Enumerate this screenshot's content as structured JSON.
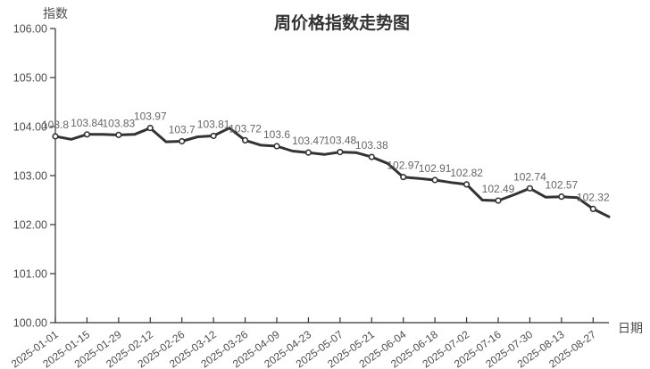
{
  "chart_data": {
    "type": "line",
    "title": "周价格指数走势图",
    "xlabel": "日期",
    "ylabel": "指数",
    "ylim": [
      100,
      106
    ],
    "y_tick_labels": [
      "106.00",
      "105.00",
      "104.00",
      "103.00",
      "102.00",
      "101.00",
      "100.00"
    ],
    "grid": "off",
    "legend": "none",
    "categories": [
      "2025-01-01",
      "2025-01-15",
      "2025-01-29",
      "2025-02-12",
      "2025-02-26",
      "2025-03-12",
      "2025-03-26",
      "2025-04-09",
      "2025-04-23",
      "2025-05-07",
      "2025-05-21",
      "2025-06-04",
      "2025-06-18",
      "2025-07-02",
      "2025-07-16",
      "2025-07-30",
      "2025-08-13",
      "2025-08-27"
    ],
    "values": [
      103.8,
      103.84,
      103.83,
      103.97,
      103.7,
      103.81,
      103.72,
      103.6,
      103.47,
      103.48,
      103.38,
      102.97,
      102.91,
      102.82,
      102.49,
      102.74,
      102.57,
      102.32
    ],
    "data_label_texts": [
      "103.8",
      "103.84",
      "103.83",
      "103.97",
      "103.7",
      "103.81",
      "103.72",
      "103.6",
      "103.47",
      "103.48",
      "103.38",
      "102.97",
      "102.91",
      "102.82",
      "102.49",
      "102.74",
      "102.57",
      "102.32"
    ],
    "series_all_points": [
      103.8,
      103.74,
      103.84,
      103.84,
      103.83,
      103.84,
      103.97,
      103.69,
      103.7,
      103.79,
      103.81,
      103.97,
      103.72,
      103.62,
      103.6,
      103.5,
      103.47,
      103.43,
      103.48,
      103.47,
      103.38,
      103.25,
      102.97,
      102.94,
      102.91,
      102.86,
      102.82,
      102.5,
      102.49,
      102.61,
      102.74,
      102.56,
      102.57,
      102.55,
      102.32,
      102.16
    ],
    "labeled_point_step": 2,
    "line_color": "#333333",
    "marker_fill": "#ffffff",
    "marker_stroke": "#333333",
    "axis_color": "#333333",
    "tick_label_color": "#4d4d4d",
    "value_label_color": "#666666"
  }
}
